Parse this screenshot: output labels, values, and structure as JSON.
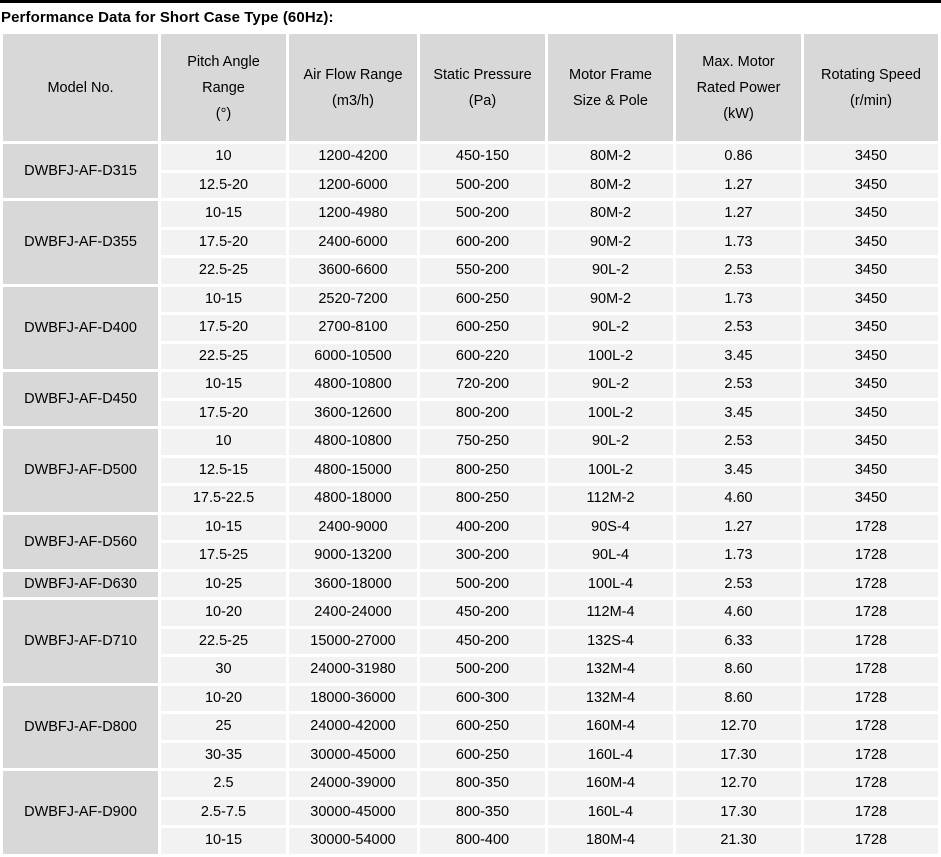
{
  "title": "Performance Data for Short Case Type (60Hz):",
  "colors": {
    "title_rule": "#000000",
    "header_bg": "#d8d8d8",
    "model_cell_bg": "#d8d8d8",
    "data_cell_bg": "#f2f2f2",
    "gutter": "#ffffff",
    "text": "#000000"
  },
  "table": {
    "headers": [
      {
        "label": "Model No.",
        "lines": [
          "Model No."
        ]
      },
      {
        "label": "Pitch Angle Range (°)",
        "lines": [
          "Pitch Angle",
          "Range",
          "(°)"
        ]
      },
      {
        "label": "Air Flow Range (m3/h)",
        "lines": [
          "Air Flow Range",
          "(m3/h)"
        ]
      },
      {
        "label": "Static Pressure (Pa)",
        "lines": [
          "Static Pressure",
          "(Pa)"
        ]
      },
      {
        "label": "Motor Frame Size & Pole",
        "lines": [
          "Motor Frame",
          "Size & Pole"
        ]
      },
      {
        "label": "Max. Motor Rated Power (kW)",
        "lines": [
          "Max. Motor",
          "Rated Power",
          "(kW)"
        ]
      },
      {
        "label": "Rotating Speed (r/min)",
        "lines": [
          "Rotating Speed",
          "(r/min)"
        ]
      }
    ],
    "groups": [
      {
        "model": "DWBFJ-AF-D315",
        "rows": [
          [
            "10",
            "1200-4200",
            "450-150",
            "80M-2",
            "0.86",
            "3450"
          ],
          [
            "12.5-20",
            "1200-6000",
            "500-200",
            "80M-2",
            "1.27",
            "3450"
          ]
        ]
      },
      {
        "model": "DWBFJ-AF-D355",
        "rows": [
          [
            "10-15",
            "1200-4980",
            "500-200",
            "80M-2",
            "1.27",
            "3450"
          ],
          [
            "17.5-20",
            "2400-6000",
            "600-200",
            "90M-2",
            "1.73",
            "3450"
          ],
          [
            "22.5-25",
            "3600-6600",
            "550-200",
            "90L-2",
            "2.53",
            "3450"
          ]
        ]
      },
      {
        "model": "DWBFJ-AF-D400",
        "rows": [
          [
            "10-15",
            "2520-7200",
            "600-250",
            "90M-2",
            "1.73",
            "3450"
          ],
          [
            "17.5-20",
            "2700-8100",
            "600-250",
            "90L-2",
            "2.53",
            "3450"
          ],
          [
            "22.5-25",
            "6000-10500",
            "600-220",
            "100L-2",
            "3.45",
            "3450"
          ]
        ]
      },
      {
        "model": "DWBFJ-AF-D450",
        "rows": [
          [
            "10-15",
            "4800-10800",
            "720-200",
            "90L-2",
            "2.53",
            "3450"
          ],
          [
            "17.5-20",
            "3600-12600",
            "800-200",
            "100L-2",
            "3.45",
            "3450"
          ]
        ]
      },
      {
        "model": "DWBFJ-AF-D500",
        "rows": [
          [
            "10",
            "4800-10800",
            "750-250",
            "90L-2",
            "2.53",
            "3450"
          ],
          [
            "12.5-15",
            "4800-15000",
            "800-250",
            "100L-2",
            "3.45",
            "3450"
          ],
          [
            "17.5-22.5",
            "4800-18000",
            "800-250",
            "112M-2",
            "4.60",
            "3450"
          ]
        ]
      },
      {
        "model": "DWBFJ-AF-D560",
        "rows": [
          [
            "10-15",
            "2400-9000",
            "400-200",
            "90S-4",
            "1.27",
            "1728"
          ],
          [
            "17.5-25",
            "9000-13200",
            "300-200",
            "90L-4",
            "1.73",
            "1728"
          ]
        ]
      },
      {
        "model": "DWBFJ-AF-D630",
        "rows": [
          [
            "10-25",
            "3600-18000",
            "500-200",
            "100L-4",
            "2.53",
            "1728"
          ]
        ]
      },
      {
        "model": "DWBFJ-AF-D710",
        "rows": [
          [
            "10-20",
            "2400-24000",
            "450-200",
            "112M-4",
            "4.60",
            "1728"
          ],
          [
            "22.5-25",
            "15000-27000",
            "450-200",
            "132S-4",
            "6.33",
            "1728"
          ],
          [
            "30",
            "24000-31980",
            "500-200",
            "132M-4",
            "8.60",
            "1728"
          ]
        ]
      },
      {
        "model": "DWBFJ-AF-D800",
        "rows": [
          [
            "10-20",
            "18000-36000",
            "600-300",
            "132M-4",
            "8.60",
            "1728"
          ],
          [
            "25",
            "24000-42000",
            "600-250",
            "160M-4",
            "12.70",
            "1728"
          ],
          [
            "30-35",
            "30000-45000",
            "600-250",
            "160L-4",
            "17.30",
            "1728"
          ]
        ]
      },
      {
        "model": "DWBFJ-AF-D900",
        "rows": [
          [
            "2.5",
            "24000-39000",
            "800-350",
            "160M-4",
            "12.70",
            "1728"
          ],
          [
            "2.5-7.5",
            "30000-45000",
            "800-350",
            "160L-4",
            "17.30",
            "1728"
          ],
          [
            "10-15",
            "30000-54000",
            "800-400",
            "180M-4",
            "21.30",
            "1728"
          ]
        ]
      }
    ]
  }
}
